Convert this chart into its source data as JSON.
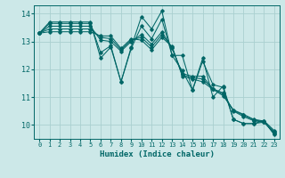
{
  "xlabel": "Humidex (Indice chaleur)",
  "bg_color": "#cce8e8",
  "grid_color": "#aad0d0",
  "line_color": "#006666",
  "xlim": [
    -0.5,
    23.5
  ],
  "ylim": [
    9.5,
    14.3
  ],
  "yticks": [
    10,
    11,
    12,
    13,
    14
  ],
  "xticks": [
    0,
    1,
    2,
    3,
    4,
    5,
    6,
    7,
    8,
    9,
    10,
    11,
    12,
    13,
    14,
    15,
    16,
    17,
    18,
    19,
    20,
    21,
    22,
    23
  ],
  "series": [
    [
      13.3,
      13.7,
      13.7,
      13.7,
      13.7,
      13.7,
      12.4,
      12.8,
      11.55,
      12.8,
      13.9,
      13.45,
      14.1,
      12.5,
      12.5,
      11.25,
      12.4,
      11.0,
      11.4,
      10.2,
      10.05,
      10.05,
      10.1,
      9.75
    ],
    [
      13.3,
      13.65,
      13.65,
      13.65,
      13.65,
      13.65,
      12.6,
      12.85,
      11.55,
      12.75,
      13.55,
      13.1,
      13.8,
      12.5,
      11.95,
      11.25,
      12.3,
      11.45,
      11.35,
      10.2,
      10.05,
      10.05,
      10.15,
      9.8
    ],
    [
      13.3,
      13.55,
      13.55,
      13.55,
      13.55,
      13.55,
      13.05,
      13.0,
      12.65,
      13.0,
      13.25,
      12.9,
      13.35,
      12.75,
      11.85,
      11.75,
      11.75,
      11.3,
      11.15,
      10.5,
      10.3,
      10.15,
      10.1,
      9.72
    ],
    [
      13.3,
      13.45,
      13.45,
      13.45,
      13.45,
      13.45,
      13.15,
      13.1,
      12.7,
      13.05,
      13.15,
      12.8,
      13.25,
      12.8,
      11.8,
      11.7,
      11.65,
      11.3,
      11.1,
      10.52,
      10.35,
      10.18,
      10.12,
      9.68
    ],
    [
      13.3,
      13.35,
      13.35,
      13.35,
      13.35,
      13.35,
      13.2,
      13.2,
      12.75,
      13.1,
      13.05,
      12.7,
      13.15,
      12.82,
      11.75,
      11.65,
      11.55,
      11.28,
      11.05,
      10.54,
      10.38,
      10.2,
      10.14,
      9.65
    ]
  ]
}
